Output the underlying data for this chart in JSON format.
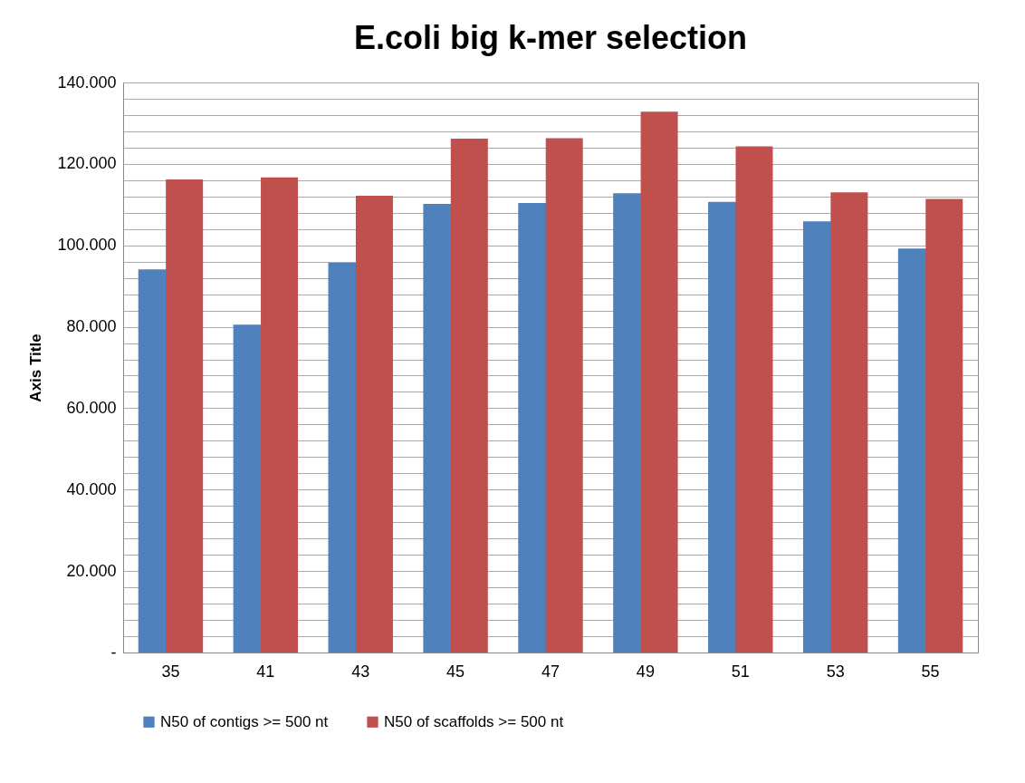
{
  "chart_data": {
    "type": "bar",
    "title": "E.coli big k-mer selection",
    "ylabel": "Axis Title",
    "categories": [
      "35",
      "41",
      "43",
      "45",
      "47",
      "49",
      "51",
      "53",
      "55"
    ],
    "series": [
      {
        "name": "N50 of contigs >= 500 nt",
        "color": "#4f81bd",
        "values": [
          94.1,
          80.5,
          95.7,
          110.2,
          110.4,
          112.8,
          110.7,
          105.9,
          99.2
        ]
      },
      {
        "name": "N50 of scaffolds >= 500 nt",
        "color": "#c0504d",
        "values": [
          116.2,
          116.7,
          112.2,
          126.2,
          126.3,
          132.8,
          124.3,
          113.0,
          111.4
        ]
      }
    ],
    "ylim": [
      0,
      140
    ],
    "yticks": [
      {
        "value": 0,
        "label": "-"
      },
      {
        "value": 4,
        "label": null
      },
      {
        "value": 8,
        "label": null
      },
      {
        "value": 12,
        "label": null
      },
      {
        "value": 16,
        "label": null
      },
      {
        "value": 20,
        "label": "20.000"
      },
      {
        "value": 24,
        "label": null
      },
      {
        "value": 28,
        "label": null
      },
      {
        "value": 32,
        "label": null
      },
      {
        "value": 36,
        "label": null
      },
      {
        "value": 40,
        "label": "40.000"
      },
      {
        "value": 44,
        "label": null
      },
      {
        "value": 48,
        "label": null
      },
      {
        "value": 52,
        "label": null
      },
      {
        "value": 56,
        "label": null
      },
      {
        "value": 60,
        "label": "60.000"
      },
      {
        "value": 64,
        "label": null
      },
      {
        "value": 68,
        "label": null
      },
      {
        "value": 72,
        "label": null
      },
      {
        "value": 76,
        "label": null
      },
      {
        "value": 80,
        "label": "80.000"
      },
      {
        "value": 84,
        "label": null
      },
      {
        "value": 88,
        "label": null
      },
      {
        "value": 92,
        "label": null
      },
      {
        "value": 96,
        "label": null
      },
      {
        "value": 100,
        "label": "100.000"
      },
      {
        "value": 104,
        "label": null
      },
      {
        "value": 108,
        "label": null
      },
      {
        "value": 112,
        "label": null
      },
      {
        "value": 116,
        "label": null
      },
      {
        "value": 120,
        "label": "120.000"
      },
      {
        "value": 124,
        "label": null
      },
      {
        "value": 128,
        "label": null
      },
      {
        "value": 132,
        "label": null
      },
      {
        "value": 136,
        "label": null
      },
      {
        "value": 140,
        "label": "140.000"
      }
    ],
    "grid": "y",
    "legend": "bottom"
  }
}
